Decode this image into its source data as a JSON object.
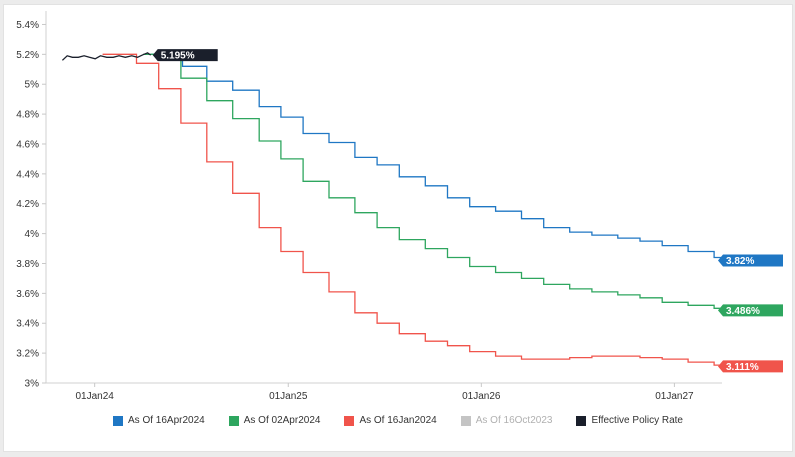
{
  "chart_data": {
    "type": "line",
    "y_axis": {
      "ticks": [
        3.0,
        3.2,
        3.4,
        3.6,
        3.8,
        4.0,
        4.2,
        4.4,
        4.6,
        4.8,
        5.0,
        5.2,
        5.4
      ],
      "tick_labels": [
        "3%",
        "3.2%",
        "3.4%",
        "3.6%",
        "3.8%",
        "4%",
        "4.2%",
        "4.4%",
        "4.6%",
        "4.8%",
        "5%",
        "5.2%",
        "5.4%"
      ],
      "ylim": [
        3.0,
        5.45
      ]
    },
    "x_axis": {
      "ticks": [
        "2024-01-01",
        "2025-01-01",
        "2026-01-01",
        "2027-01-01"
      ],
      "tick_labels": [
        "01Jan24",
        "01Jan25",
        "01Jan26",
        "01Jan27"
      ],
      "xlim": [
        "2023-10-01",
        "2027-04-01"
      ]
    },
    "series": [
      {
        "name": "As Of 16Apr2024",
        "color": "#1f77c4",
        "end_label": "3.82%",
        "dates": [
          "2024-04-16",
          "2024-05-15",
          "2024-06-15",
          "2024-07-31",
          "2024-09-18",
          "2024-11-07",
          "2024-12-18",
          "2025-01-29",
          "2025-03-19",
          "2025-05-07",
          "2025-06-18",
          "2025-07-30",
          "2025-09-17",
          "2025-10-29",
          "2025-12-10",
          "2026-01-28",
          "2026-03-18",
          "2026-04-29",
          "2026-06-17",
          "2026-07-29",
          "2026-09-16",
          "2026-10-28",
          "2026-12-09",
          "2027-01-27",
          "2027-03-17",
          "2027-04-01"
        ],
        "values": [
          5.2,
          5.2,
          5.12,
          5.02,
          4.96,
          4.85,
          4.78,
          4.67,
          4.61,
          4.51,
          4.46,
          4.38,
          4.32,
          4.24,
          4.18,
          4.15,
          4.1,
          4.04,
          4.01,
          3.99,
          3.97,
          3.95,
          3.92,
          3.88,
          3.84,
          3.82
        ]
      },
      {
        "name": "As Of 02Apr2024",
        "color": "#2ea65f",
        "end_label": "3.486%",
        "dates": [
          "2024-04-02",
          "2024-05-01",
          "2024-06-12",
          "2024-07-31",
          "2024-09-18",
          "2024-11-07",
          "2024-12-18",
          "2025-01-29",
          "2025-03-19",
          "2025-05-07",
          "2025-06-18",
          "2025-07-30",
          "2025-09-17",
          "2025-10-29",
          "2025-12-10",
          "2026-01-28",
          "2026-03-18",
          "2026-04-29",
          "2026-06-17",
          "2026-07-29",
          "2026-09-16",
          "2026-10-28",
          "2026-12-09",
          "2027-01-27",
          "2027-03-17",
          "2027-04-01"
        ],
        "values": [
          5.2,
          5.2,
          5.04,
          4.89,
          4.77,
          4.62,
          4.5,
          4.35,
          4.24,
          4.14,
          4.04,
          3.96,
          3.9,
          3.84,
          3.78,
          3.74,
          3.7,
          3.66,
          3.63,
          3.61,
          3.59,
          3.57,
          3.54,
          3.52,
          3.5,
          3.486
        ]
      },
      {
        "name": "As Of 16Jan2024",
        "color": "#f0544b",
        "end_label": "3.111%",
        "dates": [
          "2024-01-16",
          "2024-03-20",
          "2024-05-01",
          "2024-06-12",
          "2024-07-31",
          "2024-09-18",
          "2024-11-07",
          "2024-12-18",
          "2025-01-29",
          "2025-03-19",
          "2025-05-07",
          "2025-06-18",
          "2025-07-30",
          "2025-09-17",
          "2025-10-29",
          "2025-12-10",
          "2026-01-28",
          "2026-03-18",
          "2026-04-29",
          "2026-06-17",
          "2026-07-29",
          "2026-09-16",
          "2026-10-28",
          "2026-12-09",
          "2027-01-27",
          "2027-03-17",
          "2027-04-01"
        ],
        "values": [
          5.2,
          5.14,
          4.97,
          4.74,
          4.48,
          4.27,
          4.04,
          3.88,
          3.74,
          3.61,
          3.47,
          3.4,
          3.33,
          3.28,
          3.25,
          3.21,
          3.18,
          3.16,
          3.16,
          3.17,
          3.18,
          3.18,
          3.17,
          3.16,
          3.14,
          3.12,
          3.111
        ]
      },
      {
        "name": "As Of 16Oct2023",
        "color": "#c4c4c4",
        "visible": false,
        "dates": [],
        "values": []
      },
      {
        "name": "Effective Policy Rate",
        "color": "#1a1f2b",
        "end_label": "5.195%",
        "dates": [
          "2023-11-01",
          "2023-11-10",
          "2023-11-20",
          "2023-12-01",
          "2023-12-12",
          "2023-12-22",
          "2024-01-02",
          "2024-01-12",
          "2024-01-24",
          "2024-02-05",
          "2024-02-16",
          "2024-02-28",
          "2024-03-11",
          "2024-03-22",
          "2024-04-03",
          "2024-04-10",
          "2024-04-16"
        ],
        "values": [
          5.16,
          5.19,
          5.18,
          5.18,
          5.19,
          5.18,
          5.17,
          5.19,
          5.18,
          5.18,
          5.19,
          5.18,
          5.19,
          5.18,
          5.2,
          5.21,
          5.195
        ]
      }
    ],
    "legend": {
      "position": "bottom"
    }
  }
}
